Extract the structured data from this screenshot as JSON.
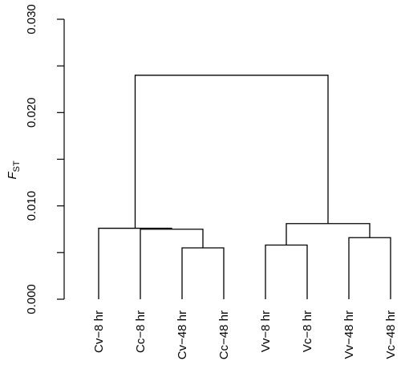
{
  "chart_data": {
    "type": "dendrogram",
    "ylabel": "F",
    "ylabel_subscript": "ST",
    "ylim": [
      0,
      0.03
    ],
    "yticks": [
      {
        "value": 0.0,
        "label": "0.000"
      },
      {
        "value": 0.01,
        "label": "0.010"
      },
      {
        "value": 0.02,
        "label": "0.020"
      },
      {
        "value": 0.03,
        "label": "0.030"
      }
    ],
    "leaves": [
      "Cv−8 hr",
      "Cc−8 hr",
      "Cv−48 hr",
      "Cc−48 hr",
      "Vv−8 hr",
      "Vc−8 hr",
      "Vv−48 hr",
      "Vc−48 hr"
    ],
    "merges": [
      {
        "left": "leaf:2",
        "right": "leaf:3",
        "height": 0.0055
      },
      {
        "left": "leaf:1",
        "right": "node:0",
        "height": 0.0075
      },
      {
        "left": "leaf:0",
        "right": "node:1",
        "height": 0.0076
      },
      {
        "left": "leaf:4",
        "right": "leaf:5",
        "height": 0.0058
      },
      {
        "left": "leaf:6",
        "right": "leaf:7",
        "height": 0.0066
      },
      {
        "left": "node:3",
        "right": "node:4",
        "height": 0.0081
      },
      {
        "left": "node:2",
        "right": "node:5",
        "height": 0.024
      }
    ],
    "grid": false,
    "legend": "none"
  }
}
